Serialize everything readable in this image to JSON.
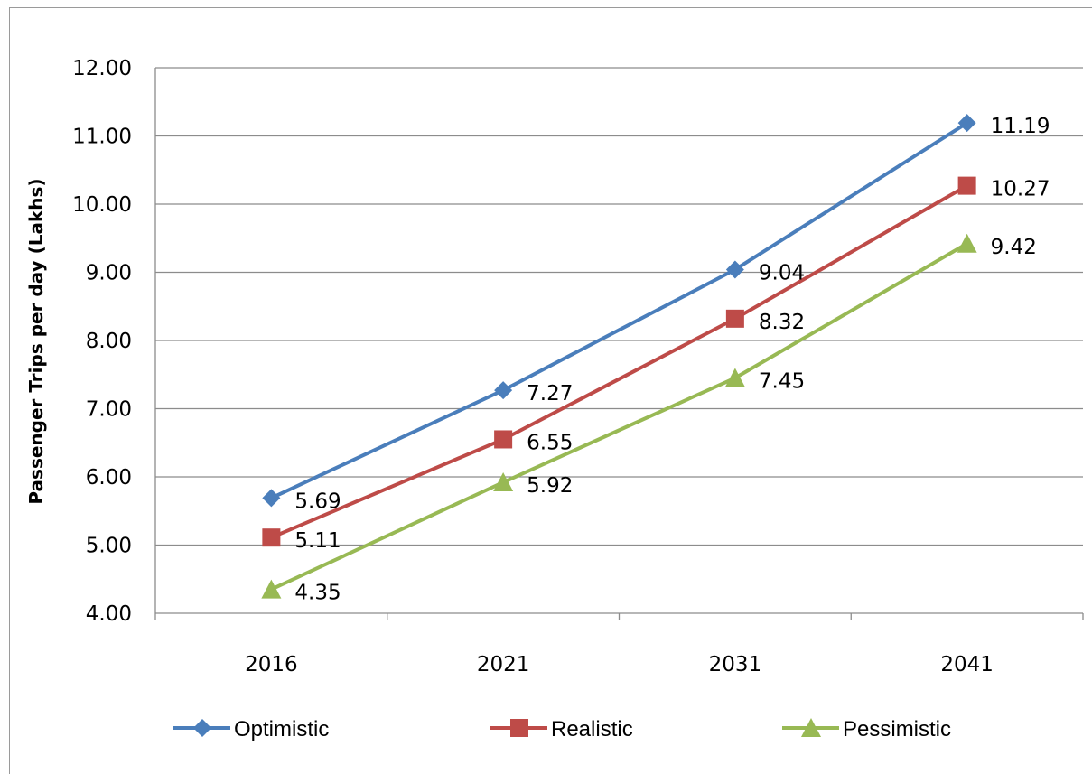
{
  "chart_data": {
    "type": "line",
    "title": "",
    "xlabel": "",
    "ylabel": "Passenger Trips per day (Lakhs)",
    "categories": [
      "2016",
      "2021",
      "2031",
      "2041"
    ],
    "ylim": [
      4.0,
      12.0
    ],
    "yticks": [
      "4.00",
      "5.00",
      "6.00",
      "7.00",
      "8.00",
      "9.00",
      "10.00",
      "11.00",
      "12.00"
    ],
    "grid": true,
    "legend_position": "bottom",
    "series": [
      {
        "name": "Optimistic",
        "values": [
          5.69,
          7.27,
          9.04,
          11.19
        ],
        "labels": [
          "5.69",
          "7.27",
          "9.04",
          "11.19"
        ],
        "color": "#4a7ebb",
        "marker": "diamond"
      },
      {
        "name": "Realistic",
        "values": [
          5.11,
          6.55,
          8.32,
          10.27
        ],
        "labels": [
          "5.11",
          "6.55",
          "8.32",
          "10.27"
        ],
        "color": "#be4b48",
        "marker": "square"
      },
      {
        "name": "Pessimistic",
        "values": [
          4.35,
          5.92,
          7.45,
          9.42
        ],
        "labels": [
          "4.35",
          "5.92",
          "7.45",
          "9.42"
        ],
        "color": "#98b954",
        "marker": "triangle"
      }
    ]
  }
}
